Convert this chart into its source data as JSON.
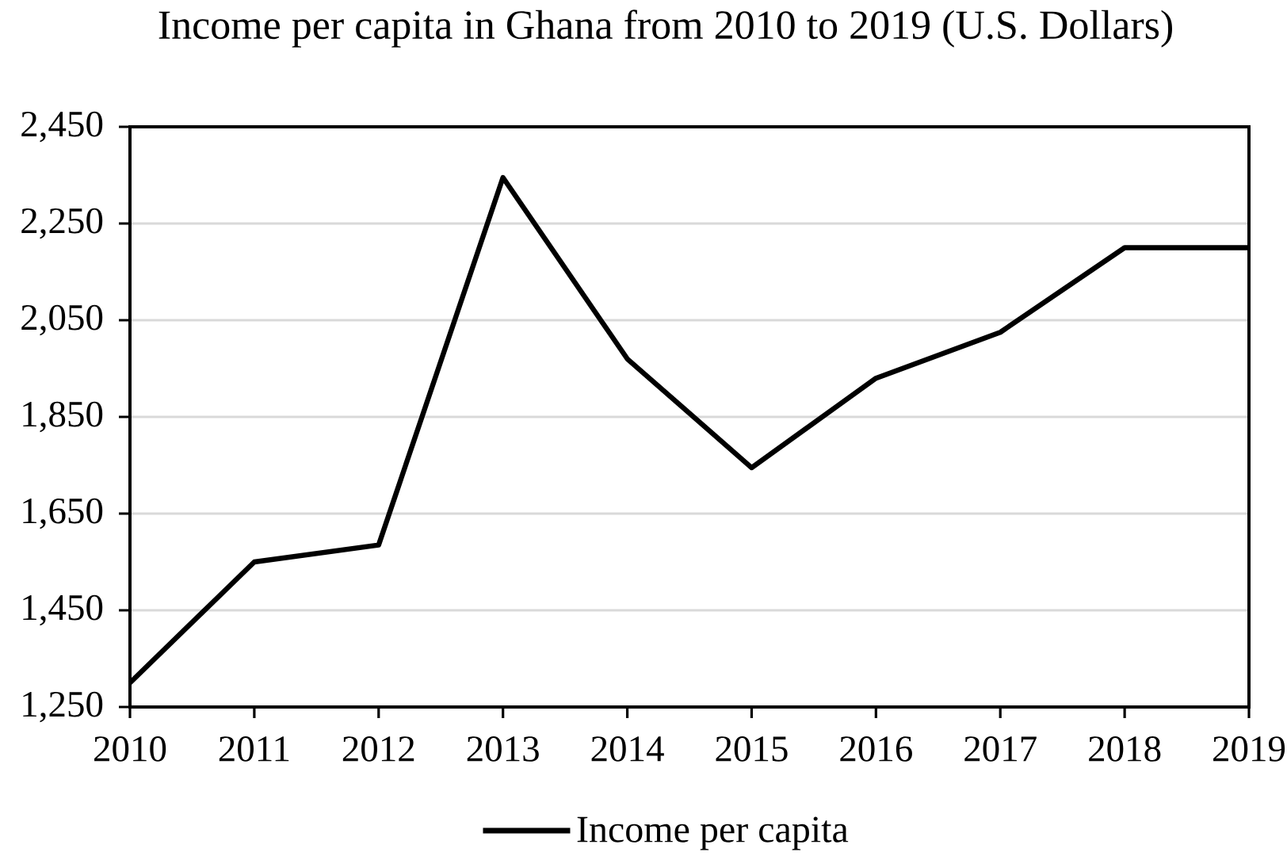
{
  "chart_data": {
    "type": "line",
    "title": "Income per capita in Ghana from 2010 to 2019 (U.S. Dollars)",
    "x": [
      2010,
      2011,
      2012,
      2013,
      2014,
      2015,
      2016,
      2017,
      2018,
      2019
    ],
    "series": [
      {
        "name": "Income per capita",
        "color": "#000000",
        "values": [
          1300,
          1550,
          1585,
          2345,
          1970,
          1745,
          1930,
          2025,
          2200,
          2200
        ]
      }
    ],
    "xlim": [
      2010,
      2019
    ],
    "xticks": [
      2010,
      2011,
      2012,
      2013,
      2014,
      2015,
      2016,
      2017,
      2018,
      2019
    ],
    "ylim": [
      1250,
      2450
    ],
    "yticks": [
      {
        "value": 1250,
        "label": "1,250"
      },
      {
        "value": 1450,
        "label": "1,450"
      },
      {
        "value": 1650,
        "label": "1,650"
      },
      {
        "value": 1850,
        "label": "1,850"
      },
      {
        "value": 2050,
        "label": "2,050"
      },
      {
        "value": 2250,
        "label": "2,250"
      },
      {
        "value": 2450,
        "label": "2,450"
      }
    ],
    "grid": "y",
    "legend": "bottom"
  }
}
